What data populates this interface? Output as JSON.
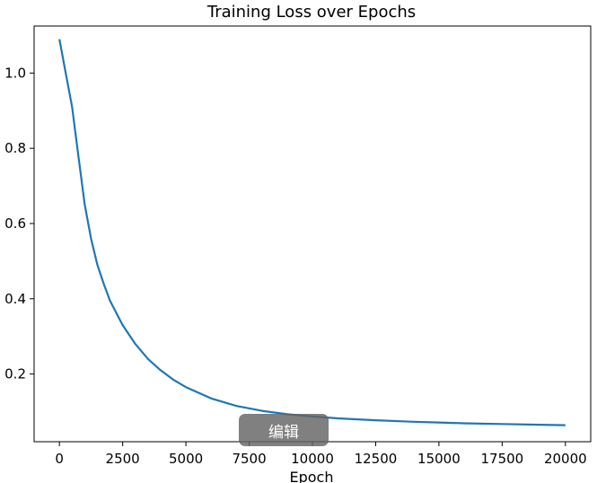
{
  "chart_data": {
    "type": "line",
    "title": "Training Loss over Epochs",
    "xlabel": "Epoch",
    "ylabel": "",
    "xlim": [
      -1000,
      21000
    ],
    "ylim": [
      0.02,
      1.125
    ],
    "xticks": [
      0,
      2500,
      5000,
      7500,
      10000,
      12500,
      15000,
      17500,
      20000
    ],
    "yticks": [
      0.2,
      0.4,
      0.6,
      0.8,
      1.0
    ],
    "ytick_labels": [
      "0.2",
      "0.4",
      "0.6",
      "0.8",
      "1.0"
    ],
    "grid": false,
    "series": [
      {
        "color": "#1f77b4",
        "x": [
          0,
          250,
          500,
          750,
          1000,
          1250,
          1500,
          1750,
          2000,
          2500,
          3000,
          3500,
          4000,
          4500,
          5000,
          6000,
          7000,
          8000,
          9000,
          10000,
          11000,
          12500,
          14000,
          15000,
          16000,
          17500,
          19000,
          20000
        ],
        "y": [
          1.09,
          1.0,
          0.91,
          0.78,
          0.65,
          0.56,
          0.49,
          0.44,
          0.395,
          0.33,
          0.28,
          0.24,
          0.21,
          0.185,
          0.165,
          0.135,
          0.115,
          0.102,
          0.093,
          0.087,
          0.082,
          0.077,
          0.073,
          0.071,
          0.069,
          0.067,
          0.065,
          0.064
        ]
      }
    ]
  },
  "overlay": {
    "edit_label": "编辑"
  }
}
